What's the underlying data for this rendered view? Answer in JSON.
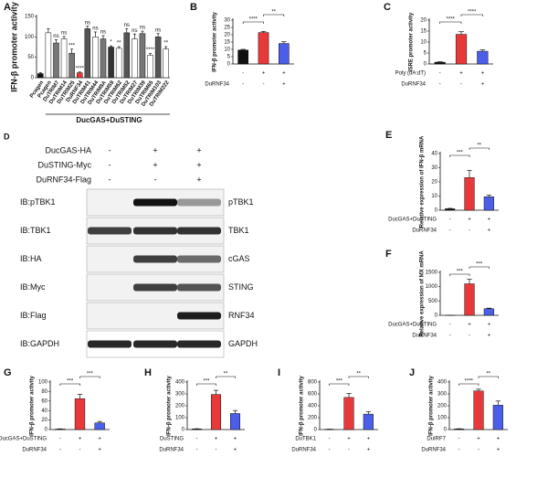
{
  "chart_data": [
    {
      "type": "bar",
      "letter": "A",
      "y_label": "IFN-β promoter activity",
      "categories": [
        "Pcagen",
        "Pcagen",
        "DuTRIM7",
        "DuTRIM14",
        "DuTRIM25",
        "DuRNF34",
        "DuTRIM41",
        "DuTRIM44",
        "DuTRIM8A",
        "DuTRIM59",
        "DuTRIM62",
        "DuTRIM52",
        "DuTRIM27",
        "DuTRIM39",
        "DuTRIM65",
        "DuTRIM103",
        "DuTRIM222"
      ],
      "values": [
        10,
        110,
        85,
        95,
        60,
        12,
        120,
        100,
        95,
        75,
        72,
        110,
        95,
        108,
        55,
        100,
        70
      ],
      "errors": [
        2,
        10,
        8,
        6,
        10,
        2,
        6,
        12,
        8,
        3,
        4,
        10,
        12,
        6,
        4,
        8,
        6
      ],
      "colors": [
        "#111111",
        "#ffffff",
        "#777777",
        "#ffffff",
        "#777777",
        "#e8393a",
        "#555555",
        "#ffffff",
        "#777777",
        "#333333",
        "#ffffff",
        "#555555",
        "#ffffff",
        "#777777",
        "#ffffff",
        "#555555",
        "#ffffff"
      ],
      "significance": [
        null,
        null,
        "ns",
        "ns",
        "***",
        "****",
        "ns",
        "ns",
        "ns",
        "*",
        "**",
        "ns",
        "ns",
        "ns",
        "****",
        "ns",
        "**"
      ],
      "group_label": "DucGAS+DuSTING",
      "ylim": [
        0,
        150
      ],
      "yticks": [
        0,
        50,
        100,
        150
      ]
    },
    {
      "type": "bar",
      "letter": "B",
      "y_label": "IFN-β promoter activity",
      "values": [
        9.5,
        21.5,
        14
      ],
      "errors": [
        0.5,
        0.8,
        1.2
      ],
      "colors": [
        "#111111",
        "#e8393a",
        "#4a5ee8"
      ],
      "ylim": [
        0,
        30
      ],
      "yticks": [
        0,
        5,
        10,
        15,
        20,
        25,
        30
      ],
      "brackets": [
        {
          "from": 0,
          "to": 1,
          "label": "****"
        },
        {
          "from": 1,
          "to": 2,
          "label": "**"
        }
      ],
      "conditions": [
        {
          "signs": [
            "-",
            "+",
            "+"
          ]
        },
        {
          "label": "DuRNF34",
          "signs": [
            "-",
            "-",
            "+"
          ]
        }
      ]
    },
    {
      "type": "bar",
      "letter": "C",
      "y_label": "ISRE promoter activity",
      "values": [
        0.8,
        13.5,
        5.8
      ],
      "errors": [
        0.2,
        1.2,
        0.6
      ],
      "colors": [
        "#111111",
        "#e8393a",
        "#4a5ee8"
      ],
      "ylim": [
        0,
        20
      ],
      "yticks": [
        0,
        5,
        10,
        15,
        20
      ],
      "brackets": [
        {
          "from": 0,
          "to": 1,
          "label": "****"
        },
        {
          "from": 1,
          "to": 2,
          "label": "****"
        }
      ],
      "conditions": [
        {
          "label": "Poly (dA:dT)",
          "signs": [
            "-",
            "+",
            "+"
          ]
        },
        {
          "label": "DuRNF34",
          "signs": [
            "-",
            "-",
            "+"
          ]
        }
      ]
    },
    {
      "type": "bar",
      "letter": "E",
      "y_label": "Relative expression of IFN-β mRNA",
      "values": [
        1,
        23,
        9.5
      ],
      "errors": [
        0.3,
        5,
        1.2
      ],
      "colors": [
        "#111111",
        "#e8393a",
        "#4a5ee8"
      ],
      "ylim": [
        0,
        40
      ],
      "yticks": [
        0,
        10,
        20,
        30,
        40
      ],
      "brackets": [
        {
          "from": 0,
          "to": 1,
          "label": "***"
        },
        {
          "from": 1,
          "to": 2,
          "label": "**"
        }
      ],
      "conditions": [
        {
          "label": "DucGAS+DuSTING",
          "signs": [
            "-",
            "+",
            "+"
          ]
        },
        {
          "label": "DuRNF34",
          "signs": [
            "-",
            "-",
            "+"
          ]
        }
      ]
    },
    {
      "type": "bar",
      "letter": "F",
      "y_label": "Relative expression of MX mRNA",
      "values": [
        1,
        1100,
        230
      ],
      "errors": [
        0,
        160,
        20
      ],
      "colors": [
        "#111111",
        "#e8393a",
        "#4a5ee8"
      ],
      "ylim": [
        0,
        1500
      ],
      "yticks": [
        0,
        500,
        1000,
        1500
      ],
      "brackets": [
        {
          "from": 0,
          "to": 1,
          "label": "***"
        },
        {
          "from": 1,
          "to": 2,
          "label": "***"
        }
      ],
      "conditions": [
        {
          "label": "DucGAS+DuSTING",
          "signs": [
            "-",
            "+",
            "+"
          ]
        },
        {
          "label": "DuRNF34",
          "signs": [
            "-",
            "-",
            "+"
          ]
        }
      ]
    },
    {
      "type": "bar",
      "letter": "G",
      "y_label": "IFN-β promoter activity",
      "values": [
        1,
        65,
        14
      ],
      "errors": [
        0.5,
        9,
        3
      ],
      "colors": [
        "#111111",
        "#e8393a",
        "#4a5ee8"
      ],
      "ylim": [
        0,
        100
      ],
      "yticks": [
        0,
        20,
        40,
        60,
        80,
        100
      ],
      "brackets": [
        {
          "from": 0,
          "to": 1,
          "label": "***"
        },
        {
          "from": 1,
          "to": 2,
          "label": "***"
        }
      ],
      "conditions": [
        {
          "label": "DucGAS+DuSTING",
          "signs": [
            "-",
            "+",
            "+"
          ]
        },
        {
          "label": "DuRNF34",
          "signs": [
            "-",
            "-",
            "+"
          ]
        }
      ]
    },
    {
      "type": "bar",
      "letter": "H",
      "y_label": "IFN-β promoter activity",
      "values": [
        5,
        295,
        135
      ],
      "errors": [
        2,
        35,
        25
      ],
      "colors": [
        "#111111",
        "#e8393a",
        "#4a5ee8"
      ],
      "ylim": [
        0,
        400
      ],
      "yticks": [
        0,
        100,
        200,
        300,
        400
      ],
      "brackets": [
        {
          "from": 0,
          "to": 1,
          "label": "***"
        },
        {
          "from": 1,
          "to": 2,
          "label": "**"
        }
      ],
      "conditions": [
        {
          "label": "DuSTING",
          "signs": [
            "-",
            "+",
            "+"
          ]
        },
        {
          "label": "DuRNF34",
          "signs": [
            "-",
            "-",
            "+"
          ]
        }
      ]
    },
    {
      "type": "bar",
      "letter": "I",
      "y_label": "IFN-β promoter activity",
      "values": [
        5,
        540,
        260
      ],
      "errors": [
        2,
        70,
        40
      ],
      "colors": [
        "#111111",
        "#e8393a",
        "#4a5ee8"
      ],
      "ylim": [
        0,
        800
      ],
      "yticks": [
        0,
        200,
        400,
        600,
        800
      ],
      "brackets": [
        {
          "from": 0,
          "to": 1,
          "label": "***"
        },
        {
          "from": 1,
          "to": 2,
          "label": "**"
        }
      ],
      "conditions": [
        {
          "label": "DuTBK1",
          "signs": [
            "-",
            "+",
            "+"
          ]
        },
        {
          "label": "DuRNF34",
          "signs": [
            "-",
            "-",
            "+"
          ]
        }
      ]
    },
    {
      "type": "bar",
      "letter": "J",
      "y_label": "IFN-β promoter activity",
      "values": [
        5,
        325,
        205
      ],
      "errors": [
        2,
        15,
        35
      ],
      "colors": [
        "#111111",
        "#e8393a",
        "#4a5ee8"
      ],
      "ylim": [
        0,
        400
      ],
      "yticks": [
        0,
        100,
        200,
        300,
        400
      ],
      "brackets": [
        {
          "from": 0,
          "to": 1,
          "label": "****"
        },
        {
          "from": 1,
          "to": 2,
          "label": "**"
        }
      ],
      "conditions": [
        {
          "label": "DuIRF7",
          "signs": [
            "-",
            "+",
            "+"
          ]
        },
        {
          "label": "DuRNF34",
          "signs": [
            "-",
            "-",
            "+"
          ]
        }
      ]
    }
  ],
  "blot": {
    "letter": "D",
    "header_rows": [
      {
        "label": "DucGAS-HA",
        "signs": [
          "-",
          "+",
          "+"
        ]
      },
      {
        "label": "DuSTING-Myc",
        "signs": [
          "-",
          "+",
          "+"
        ]
      },
      {
        "label": "DuRNF34-Flag",
        "signs": [
          "-",
          "-",
          "+"
        ]
      }
    ],
    "rows": [
      {
        "antibody": "IB:pTBK1",
        "protein": "pTBK1"
      },
      {
        "antibody": "IB:TBK1",
        "protein": "TBK1"
      },
      {
        "antibody": "IB:HA",
        "protein": "cGAS"
      },
      {
        "antibody": "IB:Myc",
        "protein": "STING"
      },
      {
        "antibody": "IB:Flag",
        "protein": "RNF34"
      },
      {
        "antibody": "IB:GAPDH",
        "protein": "GAPDH"
      }
    ]
  }
}
